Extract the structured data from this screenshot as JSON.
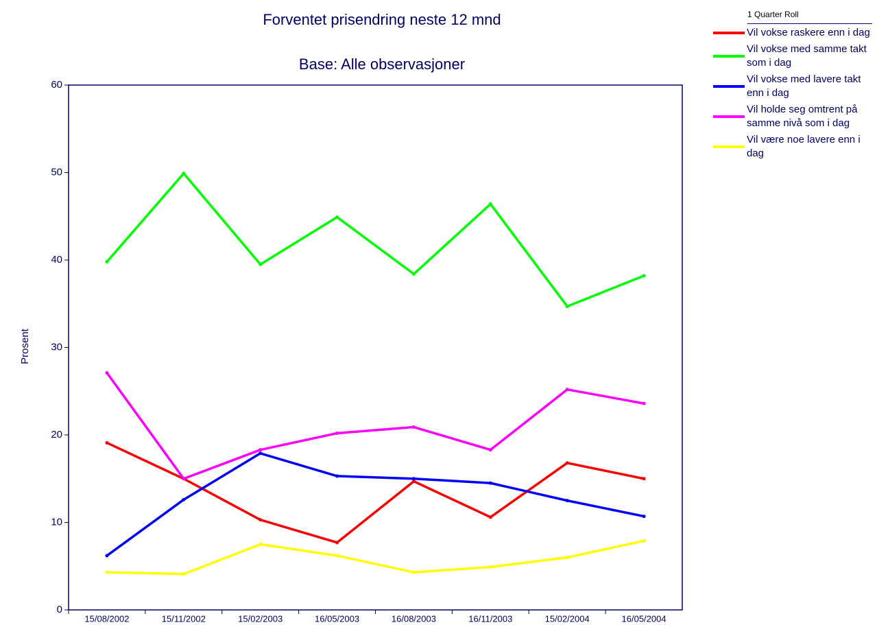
{
  "chart_data": {
    "type": "line",
    "title": "Forventet prisendring neste 12 mnd",
    "subtitle": "Base: Alle observasjoner",
    "y_label": "Prosent",
    "legend_title": "1 Quarter Roll",
    "legend": "right",
    "categories": [
      "15/08/2002",
      "15/11/2002",
      "15/02/2003",
      "16/05/2003",
      "16/08/2003",
      "16/11/2003",
      "15/02/2004",
      "16/05/2004"
    ],
    "series": [
      {
        "name": "Vil vokse raskere enn i dag",
        "color": "#ff0000",
        "values": [
          19.1,
          15.0,
          10.3,
          7.7,
          14.7,
          10.6,
          16.8,
          15.0
        ]
      },
      {
        "name": "Vil vokse med samme takt som i dag",
        "color": "#00ff00",
        "values": [
          39.8,
          49.9,
          39.5,
          44.9,
          38.4,
          46.4,
          34.7,
          38.2
        ]
      },
      {
        "name": "Vil vokse med lavere takt enn i dag",
        "color": "#0000ff",
        "values": [
          6.2,
          12.6,
          17.9,
          15.3,
          15.0,
          14.5,
          12.5,
          10.7
        ]
      },
      {
        "name": "Vil holde seg omtrent på samme nivå som i dag",
        "color": "#ff00ff",
        "values": [
          27.1,
          15.0,
          18.3,
          20.2,
          20.9,
          18.3,
          25.2,
          23.6
        ]
      },
      {
        "name": "Vil være noe lavere enn i dag",
        "color": "#ffff00",
        "values": [
          4.3,
          4.1,
          7.5,
          6.2,
          4.3,
          4.9,
          6.0,
          7.9
        ]
      }
    ],
    "ylim": [
      0,
      60
    ],
    "yticks": [
      0,
      10,
      20,
      30,
      40,
      50,
      60
    ],
    "grid": false
  }
}
